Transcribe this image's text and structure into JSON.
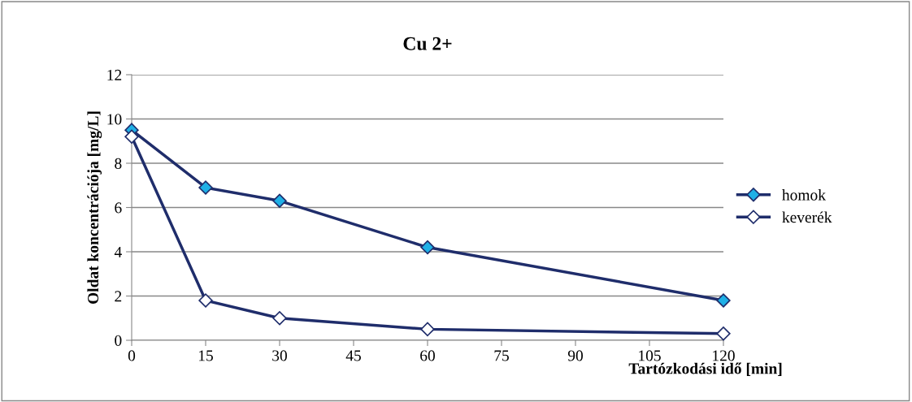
{
  "chart_data": {
    "type": "line",
    "title": "Cu 2+",
    "xlabel": "Tartózkodási idő [min]",
    "ylabel": "Oldat koncentrációja [mg/L]",
    "x": [
      0,
      15,
      30,
      60,
      120
    ],
    "series": [
      {
        "name": "homok",
        "color": "#1fb0e6",
        "values": [
          9.5,
          6.9,
          6.3,
          4.2,
          1.8
        ]
      },
      {
        "name": "keverék",
        "color": "#ffffff",
        "values": [
          9.2,
          1.8,
          1.0,
          0.5,
          0.3
        ]
      }
    ],
    "xlim": [
      0,
      120
    ],
    "xticks": [
      0,
      15,
      30,
      45,
      60,
      75,
      90,
      105,
      120
    ],
    "ylim": [
      0,
      12
    ],
    "yticks": [
      0,
      2,
      4,
      6,
      8,
      10,
      12
    ],
    "grid": "y",
    "legend": "right",
    "marker": "diamond",
    "line_style": "solid"
  }
}
